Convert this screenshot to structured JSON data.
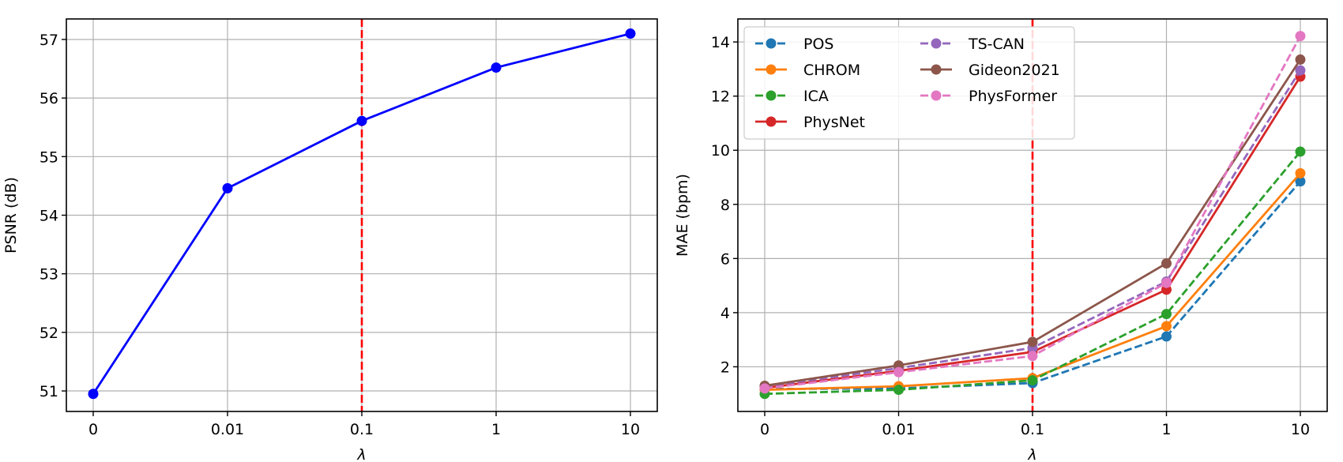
{
  "chart_data": [
    {
      "type": "line",
      "xlabel": "λ",
      "ylabel": "PSNR (dB)",
      "categories": [
        "0",
        "0.01",
        "0.1",
        "1",
        "10"
      ],
      "ylim": [
        50.65,
        57.35
      ],
      "yticks": [
        51,
        52,
        53,
        54,
        55,
        56,
        57
      ],
      "grid": true,
      "vline": {
        "x": "0.1",
        "color": "#ff0000",
        "style": "dashed"
      },
      "series": [
        {
          "values": [
            50.95,
            54.46,
            55.61,
            56.52,
            57.1
          ],
          "color": "#0000ff",
          "style": "solid"
        }
      ]
    },
    {
      "type": "line",
      "xlabel": "λ",
      "ylabel": "MAE (bpm)",
      "categories": [
        "0",
        "0.01",
        "0.1",
        "1",
        "10"
      ],
      "ylim": [
        0.35,
        14.85
      ],
      "yticks": [
        2,
        4,
        6,
        8,
        10,
        12,
        14
      ],
      "grid": true,
      "legend": "top-left",
      "vline": {
        "x": "0.1",
        "color": "#ff0000",
        "style": "dashed"
      },
      "series": [
        {
          "name": "POS",
          "values": [
            1.18,
            1.2,
            1.4,
            3.12,
            8.85
          ],
          "color": "#1f77b4",
          "style": "dashed"
        },
        {
          "name": "CHROM",
          "values": [
            1.15,
            1.28,
            1.58,
            3.5,
            9.15
          ],
          "color": "#ff7f0e",
          "style": "solid"
        },
        {
          "name": "ICA",
          "values": [
            1.0,
            1.15,
            1.5,
            3.95,
            9.95
          ],
          "color": "#2ca02c",
          "style": "dashed"
        },
        {
          "name": "PhysNet",
          "values": [
            1.22,
            1.85,
            2.55,
            4.85,
            12.72
          ],
          "color": "#d62728",
          "style": "solid"
        },
        {
          "name": "TS-CAN",
          "values": [
            1.28,
            1.95,
            2.7,
            5.15,
            12.95
          ],
          "color": "#9467bd",
          "style": "dashed"
        },
        {
          "name": "Gideon2021",
          "values": [
            1.3,
            2.05,
            2.92,
            5.82,
            13.35
          ],
          "color": "#8c564b",
          "style": "solid"
        },
        {
          "name": "PhysFormer",
          "values": [
            1.2,
            1.8,
            2.4,
            5.1,
            14.22
          ],
          "color": "#e377c2",
          "style": "dashed"
        }
      ]
    }
  ]
}
